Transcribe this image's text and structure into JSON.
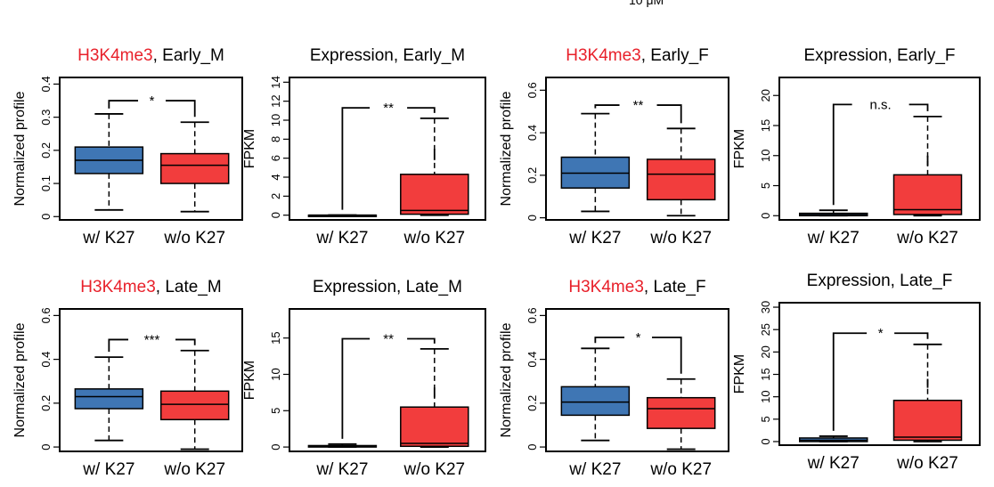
{
  "top_fragment": "10 μM",
  "colors": {
    "blue": "#3f76b4",
    "red": "#f23d3d",
    "title_red": "#e8202a",
    "black": "#000000"
  },
  "chart_data": [
    {
      "type": "box",
      "title_prefix": "H3K4me3",
      "title_suffix": ", Early_M",
      "ylabel": "Normalized profile",
      "ylim": [
        -0.01,
        0.42
      ],
      "yticks": [
        0,
        0.1,
        0.2,
        0.3,
        0.4
      ],
      "ytick_labels": [
        "0",
        "0.1",
        "0.2",
        "0.3",
        "0.4"
      ],
      "categories": [
        "w/ K27",
        "w/o K27"
      ],
      "boxes": [
        {
          "whisker_low": 0.02,
          "q1": 0.13,
          "median": 0.17,
          "q3": 0.21,
          "whisker_high": 0.31,
          "color": "#3f76b4"
        },
        {
          "whisker_low": 0.015,
          "q1": 0.1,
          "median": 0.155,
          "q3": 0.19,
          "whisker_high": 0.285,
          "color": "#f23d3d"
        }
      ],
      "significance": "*",
      "bracket_y": 0.35
    },
    {
      "type": "box",
      "title_prefix": "",
      "title_suffix": "Expression, Early_M",
      "ylabel": "FPKM",
      "ylim": [
        -0.5,
        14.5
      ],
      "yticks": [
        0,
        2,
        4,
        6,
        8,
        10,
        12,
        14
      ],
      "ytick_labels": [
        "0",
        "2",
        "4",
        "6",
        "8",
        "10",
        "12",
        "14"
      ],
      "categories": [
        "w/ K27",
        "w/o K27"
      ],
      "boxes": [
        {
          "whisker_low": 0.0,
          "q1": 0.0,
          "median": 0.0,
          "q3": 0.0,
          "whisker_high": 0.0,
          "color": "#3f76b4"
        },
        {
          "whisker_low": 0.0,
          "q1": 0.1,
          "median": 0.5,
          "q3": 4.3,
          "whisker_high": 10.2,
          "color": "#f23d3d"
        }
      ],
      "outliers": [
        {
          "box": 1,
          "from": 5.8,
          "to": 7.0
        }
      ],
      "significance": "**",
      "bracket_y": 11.3
    },
    {
      "type": "box",
      "title_prefix": "H3K4me3",
      "title_suffix": ", Early_F",
      "ylabel": "Normalized profile",
      "ylim": [
        -0.01,
        0.66
      ],
      "yticks": [
        0,
        0.2,
        0.4,
        0.6
      ],
      "ytick_labels": [
        "0",
        "0.2",
        "0.4",
        "0.6"
      ],
      "categories": [
        "w/ K27",
        "w/o K27"
      ],
      "boxes": [
        {
          "whisker_low": 0.03,
          "q1": 0.14,
          "median": 0.21,
          "q3": 0.285,
          "whisker_high": 0.49,
          "color": "#3f76b4"
        },
        {
          "whisker_low": 0.01,
          "q1": 0.085,
          "median": 0.205,
          "q3": 0.275,
          "whisker_high": 0.42,
          "color": "#f23d3d"
        }
      ],
      "significance": "**",
      "bracket_y": 0.53
    },
    {
      "type": "box",
      "title_prefix": "",
      "title_suffix": "Expression, Early_F",
      "ylabel": "FPKM",
      "ylim": [
        -0.7,
        23
      ],
      "yticks": [
        0,
        5,
        10,
        15,
        20
      ],
      "ytick_labels": [
        "0",
        "5",
        "10",
        "15",
        "20"
      ],
      "categories": [
        "w/ K27",
        "w/o K27"
      ],
      "boxes": [
        {
          "whisker_low": 0.0,
          "q1": 0.0,
          "median": 0.15,
          "q3": 0.4,
          "whisker_high": 0.9,
          "color": "#3f76b4"
        },
        {
          "whisker_low": 0.0,
          "q1": 0.2,
          "median": 1.0,
          "q3": 6.8,
          "whisker_high": 16.5,
          "color": "#f23d3d"
        }
      ],
      "outliers": [
        {
          "box": 1,
          "from": 8.3,
          "to": 10.0
        }
      ],
      "significance": "n.s.",
      "bracket_y": 18.5
    },
    {
      "type": "box",
      "title_prefix": "H3K4me3",
      "title_suffix": ", Late_M",
      "ylabel": "Normalized profile",
      "ylim": [
        -0.02,
        0.63
      ],
      "yticks": [
        0,
        0.2,
        0.4,
        0.6
      ],
      "ytick_labels": [
        "0",
        "0.2",
        "0.4",
        "0.6"
      ],
      "categories": [
        "w/ K27",
        "w/o K27"
      ],
      "boxes": [
        {
          "whisker_low": 0.03,
          "q1": 0.175,
          "median": 0.23,
          "q3": 0.265,
          "whisker_high": 0.41,
          "color": "#3f76b4"
        },
        {
          "whisker_low": -0.01,
          "q1": 0.125,
          "median": 0.195,
          "q3": 0.255,
          "whisker_high": 0.44,
          "color": "#f23d3d"
        }
      ],
      "significance": "***",
      "bracket_y": 0.49
    },
    {
      "type": "box",
      "title_prefix": "",
      "title_suffix": "Expression, Late_M",
      "ylabel": "FPKM",
      "ylim": [
        -0.6,
        19
      ],
      "yticks": [
        0,
        5,
        10,
        15
      ],
      "ytick_labels": [
        "0",
        "5",
        "10",
        "15"
      ],
      "categories": [
        "w/ K27",
        "w/o K27"
      ],
      "boxes": [
        {
          "whisker_low": 0.0,
          "q1": 0.0,
          "median": 0.1,
          "q3": 0.2,
          "whisker_high": 0.4,
          "color": "#3f76b4"
        },
        {
          "whisker_low": 0.0,
          "q1": 0.1,
          "median": 0.5,
          "q3": 5.5,
          "whisker_high": 13.5,
          "color": "#f23d3d"
        }
      ],
      "outliers": [
        {
          "box": 1,
          "from": 6.8,
          "to": 8.2
        }
      ],
      "significance": "**",
      "bracket_y": 14.9
    },
    {
      "type": "box",
      "title_prefix": "H3K4me3",
      "title_suffix": ", Late_F",
      "ylabel": "Normalized profile",
      "ylim": [
        -0.02,
        0.63
      ],
      "yticks": [
        0,
        0.2,
        0.4,
        0.6
      ],
      "ytick_labels": [
        "0",
        "0.2",
        "0.4",
        "0.6"
      ],
      "categories": [
        "w/ K27",
        "w/o K27"
      ],
      "boxes": [
        {
          "whisker_low": 0.03,
          "q1": 0.145,
          "median": 0.205,
          "q3": 0.275,
          "whisker_high": 0.45,
          "color": "#3f76b4"
        },
        {
          "whisker_low": -0.01,
          "q1": 0.085,
          "median": 0.175,
          "q3": 0.225,
          "whisker_high": 0.31,
          "color": "#f23d3d"
        }
      ],
      "significance": "*",
      "bracket_y": 0.5
    },
    {
      "type": "box",
      "title_prefix": "",
      "title_suffix": "Expression, Late_F",
      "ylabel": "FPKM",
      "ylim": [
        -0.8,
        31
      ],
      "yticks": [
        0,
        5,
        10,
        15,
        20,
        25,
        30
      ],
      "ytick_labels": [
        "0",
        "5",
        "10",
        "15",
        "20",
        "25",
        "30"
      ],
      "categories": [
        "w/ K27",
        "w/o K27"
      ],
      "boxes": [
        {
          "whisker_low": 0.0,
          "q1": 0.0,
          "median": 0.3,
          "q3": 0.8,
          "whisker_high": 1.2,
          "color": "#3f76b4"
        },
        {
          "whisker_low": 0.0,
          "q1": 0.3,
          "median": 1.0,
          "q3": 9.2,
          "whisker_high": 21.7,
          "color": "#f23d3d"
        }
      ],
      "outliers": [
        {
          "box": 1,
          "from": 12.0,
          "to": 14.0
        }
      ],
      "significance": "*",
      "bracket_y": 24.2
    }
  ]
}
